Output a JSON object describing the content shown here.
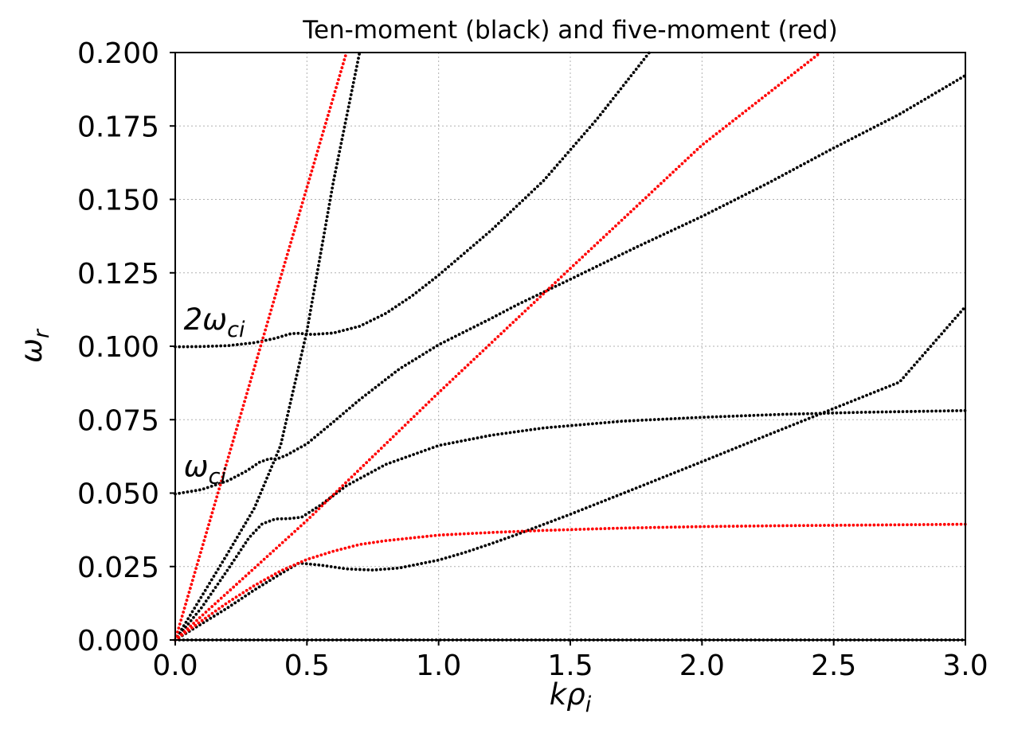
{
  "chart_data": {
    "type": "scatter",
    "title": "Ten-moment (black) and five-moment (red)",
    "xlabel": {
      "main": "kρ",
      "sub": "i"
    },
    "ylabel": {
      "main": "ω",
      "sub": "r"
    },
    "xlim": [
      0,
      3.0
    ],
    "ylim": [
      0,
      0.2
    ],
    "grid": true,
    "x_ticks": [
      "0.0",
      "0.5",
      "1.0",
      "1.5",
      "2.0",
      "2.5",
      "3.0"
    ],
    "y_ticks": [
      "0.000",
      "0.025",
      "0.050",
      "0.075",
      "0.100",
      "0.125",
      "0.150",
      "0.175",
      "0.200"
    ],
    "annotations": [
      {
        "main": "2ω",
        "sub": "ci",
        "x": 0.02,
        "y": 0.109
      },
      {
        "main": "ω",
        "sub": "ci",
        "x": 0.02,
        "y": 0.059
      }
    ],
    "colors": {
      "ten_moment": "#000000",
      "five_moment": "#ff0000"
    },
    "series": [
      {
        "model": "ten-moment",
        "color": "#000000",
        "x": [
          0.0,
          0.3,
          0.6,
          0.9,
          1.2,
          1.5,
          1.8,
          2.1,
          2.4,
          2.7,
          3.0
        ],
        "y": [
          0.0,
          0.0,
          0.0,
          0.0,
          0.0,
          0.0,
          0.0,
          0.0,
          0.0,
          0.0,
          0.0
        ]
      },
      {
        "model": "ten-moment",
        "color": "#000000",
        "x": [
          0.0,
          0.1,
          0.2,
          0.3,
          0.4,
          0.47,
          0.55,
          0.65,
          0.75,
          0.85,
          1.0,
          1.1,
          1.2,
          1.3,
          1.4,
          1.5,
          1.75,
          2.0,
          2.25,
          2.5,
          2.75,
          3.0
        ],
        "y": [
          0.0,
          0.0055,
          0.011,
          0.017,
          0.0225,
          0.0262,
          0.0255,
          0.0242,
          0.0238,
          0.0245,
          0.0272,
          0.0298,
          0.0328,
          0.036,
          0.0394,
          0.0428,
          0.0517,
          0.0607,
          0.0698,
          0.0788,
          0.0878,
          0.1135
        ]
      },
      {
        "model": "ten-moment",
        "color": "#000000",
        "x": [
          0.0,
          0.1,
          0.2,
          0.28,
          0.33,
          0.38,
          0.43,
          0.48,
          0.55,
          0.65,
          0.8,
          1.0,
          1.2,
          1.4,
          1.7,
          2.0,
          2.3,
          2.6,
          3.0
        ],
        "y": [
          0.0,
          0.011,
          0.024,
          0.0348,
          0.0395,
          0.0412,
          0.0413,
          0.0418,
          0.0458,
          0.0525,
          0.0598,
          0.0662,
          0.0697,
          0.0722,
          0.0745,
          0.0758,
          0.0768,
          0.0775,
          0.0781
        ]
      },
      {
        "model": "ten-moment",
        "color": "#000000",
        "x": [
          0.0,
          0.1,
          0.2,
          0.27,
          0.32,
          0.36,
          0.38,
          0.42,
          0.5,
          0.6,
          0.7,
          0.85,
          1.0,
          1.2,
          1.3,
          1.5,
          1.75,
          2.0,
          2.25,
          2.5,
          2.75,
          3.0
        ],
        "y": [
          0.0497,
          0.0512,
          0.0542,
          0.0575,
          0.0605,
          0.0618,
          0.0614,
          0.0628,
          0.0668,
          0.0742,
          0.0818,
          0.0922,
          0.1005,
          0.1095,
          0.1142,
          0.1228,
          0.1337,
          0.1442,
          0.1555,
          0.1675,
          0.179,
          0.1922
        ]
      },
      {
        "model": "ten-moment",
        "color": "#000000",
        "x": [
          0.0,
          0.1,
          0.2,
          0.3,
          0.38,
          0.44,
          0.47,
          0.52,
          0.6,
          0.7,
          0.8,
          0.9,
          1.0,
          1.2,
          1.4,
          1.6,
          1.8
        ],
        "y": [
          0.0998,
          0.0999,
          0.1002,
          0.1012,
          0.1027,
          0.1043,
          0.1044,
          0.104,
          0.1045,
          0.1068,
          0.1112,
          0.1172,
          0.1242,
          0.1395,
          0.1565,
          0.1772,
          0.2
        ]
      },
      {
        "model": "ten-moment",
        "color": "#000000",
        "x": [
          0.0,
          0.1,
          0.2,
          0.3,
          0.4,
          0.5,
          0.6,
          0.7
        ],
        "y": [
          0.0,
          0.0148,
          0.0296,
          0.0448,
          0.0662,
          0.1052,
          0.1558,
          0.2
        ]
      },
      {
        "model": "five-moment",
        "color": "#ff0000",
        "x": [
          0.0,
          0.1,
          0.2,
          0.3,
          0.4,
          0.5,
          0.6,
          0.7,
          0.8,
          1.0,
          1.2,
          1.4,
          1.7,
          2.0,
          2.3,
          2.6,
          3.0
        ],
        "y": [
          0.0,
          0.0065,
          0.0128,
          0.0185,
          0.0235,
          0.0274,
          0.0302,
          0.0325,
          0.0338,
          0.0357,
          0.0366,
          0.0373,
          0.0381,
          0.0386,
          0.0389,
          0.0391,
          0.0394
        ]
      },
      {
        "model": "five-moment",
        "color": "#ff0000",
        "x": [
          0.0,
          0.5,
          1.0,
          1.5,
          2.0,
          2.45
        ],
        "y": [
          0.0,
          0.0407,
          0.0842,
          0.1265,
          0.1685,
          0.2
        ]
      },
      {
        "model": "five-moment",
        "color": "#ff0000",
        "x": [
          0.0,
          0.2,
          0.4,
          0.65
        ],
        "y": [
          0.0,
          0.0617,
          0.1234,
          0.2
        ]
      }
    ]
  }
}
